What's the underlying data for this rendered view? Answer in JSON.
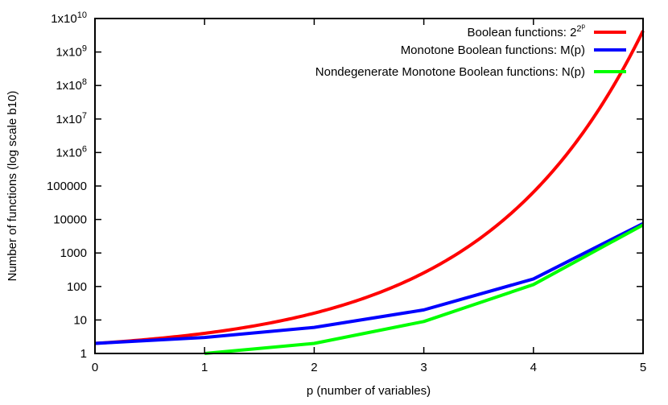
{
  "chart_data": {
    "type": "line",
    "xlabel": "p (number of variables)",
    "ylabel": "Number of functions (log scale b10)",
    "xlim": [
      0,
      5
    ],
    "ylim": [
      1,
      10000000000
    ],
    "yscale": "log10",
    "grid": false,
    "legend_placement": "top-right",
    "xticks": [
      "0",
      "1",
      "2",
      "3",
      "4",
      "5"
    ],
    "yticks": [
      {
        "value": 1,
        "label": "1"
      },
      {
        "value": 10,
        "label": "10"
      },
      {
        "value": 100,
        "label": "100"
      },
      {
        "value": 1000,
        "label": "1000"
      },
      {
        "value": 10000,
        "label": "10000"
      },
      {
        "value": 100000,
        "label": "100000"
      },
      {
        "value": 1000000,
        "label": "1x10",
        "sup": "6"
      },
      {
        "value": 10000000,
        "label": "1x10",
        "sup": "7"
      },
      {
        "value": 100000000,
        "label": "1x10",
        "sup": "8"
      },
      {
        "value": 1000000000,
        "label": "1x10",
        "sup": "9"
      },
      {
        "value": 10000000000,
        "label": "1x10",
        "sup": "10"
      }
    ],
    "series": [
      {
        "name": "Boolean functions: 2",
        "name_sup": "2",
        "name_supsup": "p",
        "color": "#ff0000",
        "smooth": true,
        "x": [
          0,
          1,
          2,
          3,
          4,
          5
        ],
        "y": [
          2,
          4,
          16,
          256,
          65536,
          4294967296
        ]
      },
      {
        "name": "Monotone Boolean functions: M(p)",
        "color": "#0000ff",
        "x": [
          0,
          1,
          2,
          3,
          4,
          5
        ],
        "y": [
          2,
          3,
          6,
          20,
          168,
          7581
        ]
      },
      {
        "name": "Nondegenerate Monotone Boolean functions: N(p)",
        "color": "#00ff00",
        "x": [
          1,
          2,
          3,
          4,
          5
        ],
        "y": [
          1,
          2,
          9,
          114,
          6894
        ]
      }
    ]
  }
}
